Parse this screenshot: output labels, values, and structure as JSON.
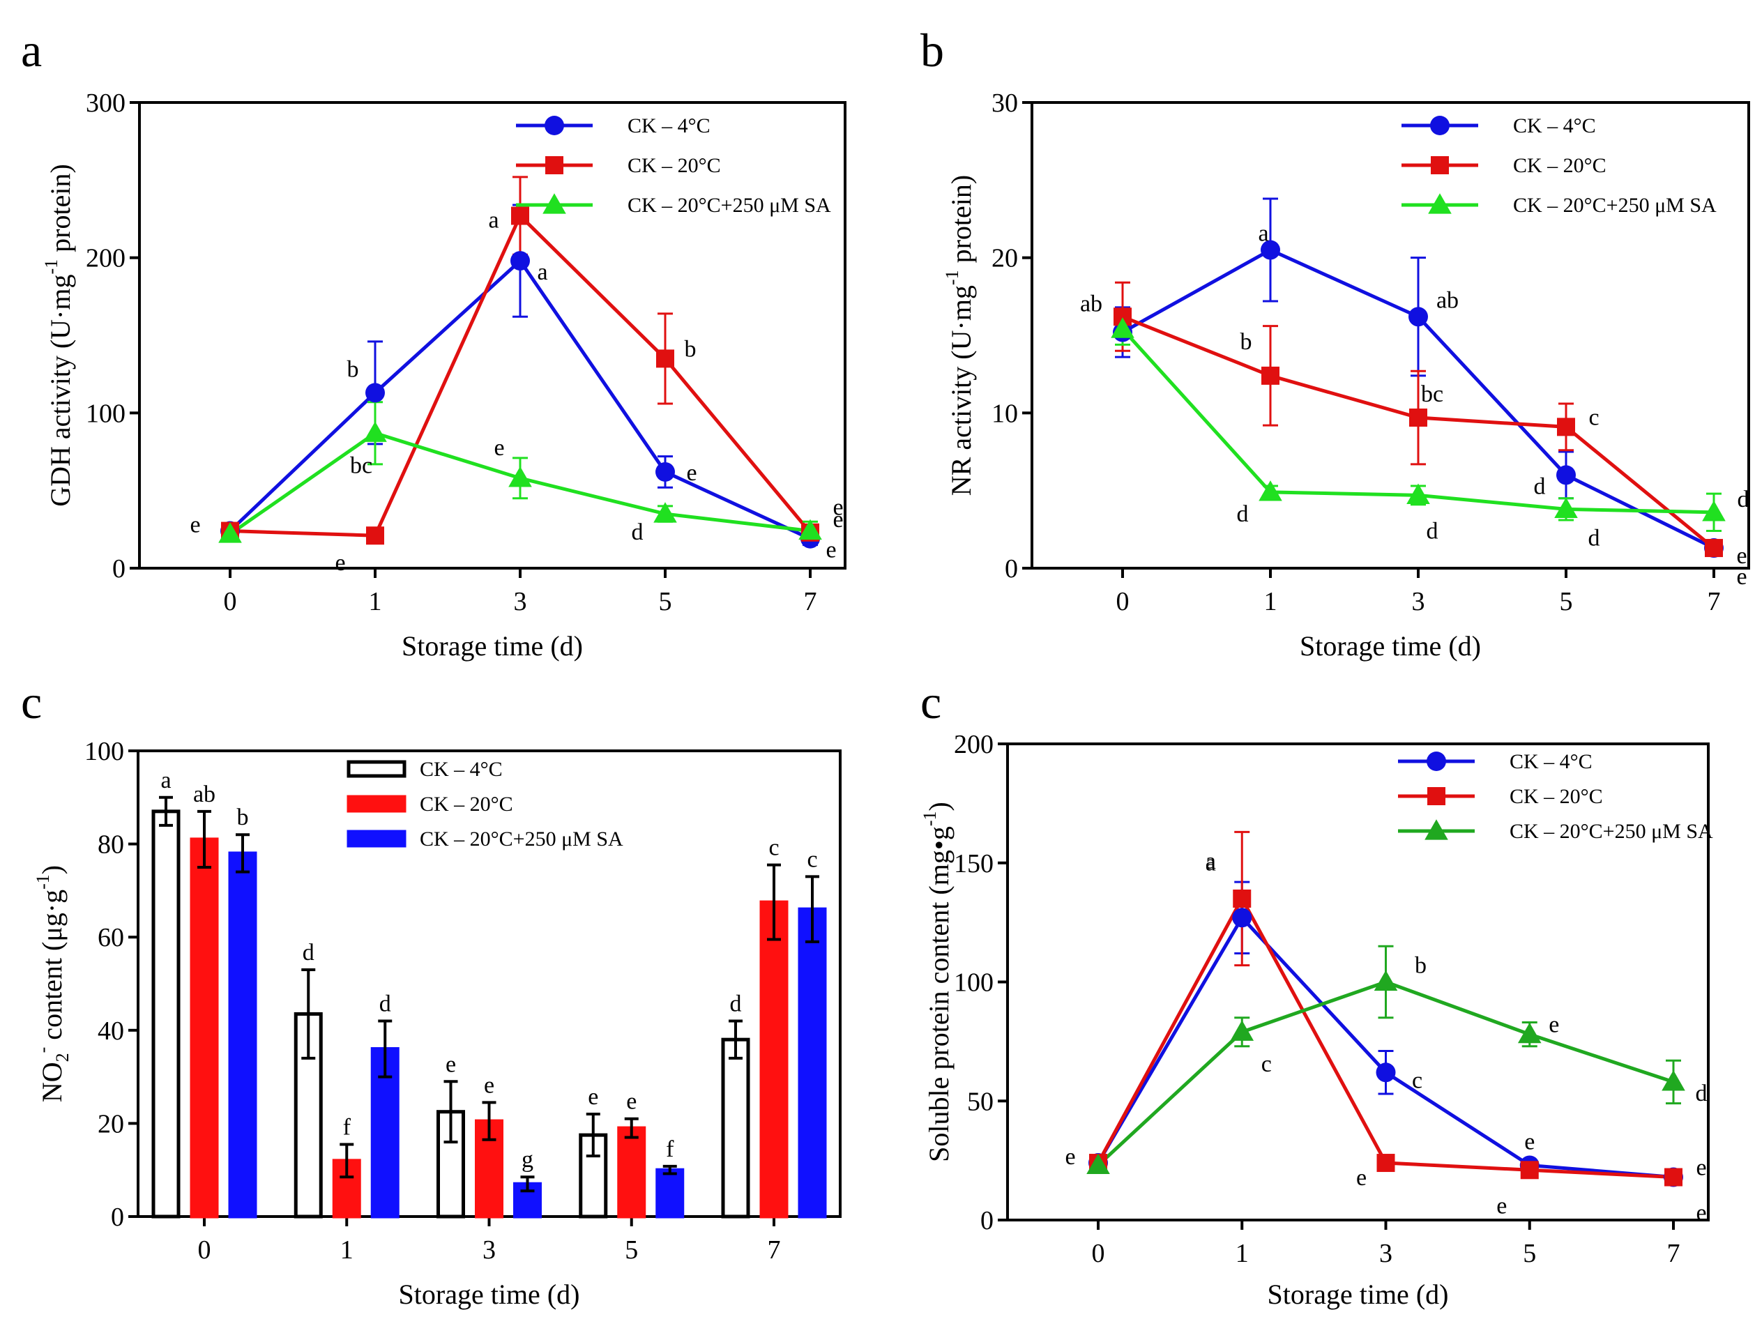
{
  "chart_data": [
    {
      "panel": "a",
      "type": "line",
      "categories": [
        "0",
        "1",
        "3",
        "5",
        "7"
      ],
      "xlabel": "Storage time (d)",
      "ylabel": "GDH activity (U·mg-1 protein)",
      "ylabel_parts": {
        "pre": "GDH activity (U·mg",
        "sup": "-1",
        "post": " protein)"
      },
      "ylim": [
        0,
        300
      ],
      "yticks": [
        "0",
        "100",
        "200",
        "300"
      ],
      "legend_position": "top-right",
      "series": [
        {
          "name": "CK – 4°C",
          "color": "#1010e0",
          "marker": "circle",
          "values": [
            24,
            113,
            198,
            62,
            19
          ],
          "errors": [
            4,
            33,
            36,
            10,
            4
          ],
          "labels": [
            "e",
            "b",
            "a",
            "e",
            "e"
          ]
        },
        {
          "name": "CK – 20°C",
          "color": "#e01010",
          "marker": "square",
          "values": [
            24,
            21,
            227,
            135,
            23
          ],
          "errors": [
            3,
            3,
            25,
            29,
            5
          ],
          "labels": [
            "",
            "e",
            "a",
            "b",
            "e"
          ]
        },
        {
          "name": "CK – 20°C+250 μM SA",
          "color": "#20e020",
          "marker": "triangle",
          "values": [
            22,
            87,
            58,
            35,
            24
          ],
          "errors": [
            3,
            20,
            13,
            5,
            6
          ],
          "labels": [
            "",
            "bc",
            "e",
            "d",
            "e"
          ]
        }
      ]
    },
    {
      "panel": "b",
      "type": "line",
      "categories": [
        "0",
        "1",
        "3",
        "5",
        "7"
      ],
      "xlabel": "Storage time (d)",
      "ylabel": "NR activity (U·mg-1 protein)",
      "ylabel_parts": {
        "pre": "NR activity (U·mg",
        "sup": "-1",
        "post": " protein)"
      },
      "ylim": [
        0,
        30
      ],
      "yticks": [
        "0",
        "10",
        "20",
        "30"
      ],
      "legend_position": "top-right",
      "series": [
        {
          "name": "CK – 4°C",
          "color": "#1010e0",
          "marker": "circle",
          "values": [
            15.2,
            20.5,
            16.2,
            6.0,
            1.3
          ],
          "errors": [
            1.6,
            3.3,
            3.8,
            1.5,
            0.3
          ],
          "labels": [
            "",
            "a",
            "ab",
            "d",
            "e"
          ]
        },
        {
          "name": "CK – 20°C",
          "color": "#e01010",
          "marker": "square",
          "values": [
            16.2,
            12.4,
            9.7,
            9.1,
            1.3
          ],
          "errors": [
            2.2,
            3.2,
            3.0,
            1.5,
            0.3
          ],
          "labels": [
            "ab",
            "b",
            "bc",
            "c",
            "e"
          ]
        },
        {
          "name": "CK – 20°C+250 μM SA",
          "color": "#20e020",
          "marker": "triangle",
          "values": [
            15.4,
            4.9,
            4.7,
            3.8,
            3.6
          ],
          "errors": [
            1.0,
            0.4,
            0.6,
            0.7,
            1.2
          ],
          "labels": [
            "",
            "d",
            "d",
            "d",
            "d"
          ]
        }
      ]
    },
    {
      "panel": "c",
      "type": "bar",
      "categories": [
        "0",
        "1",
        "3",
        "5",
        "7"
      ],
      "xlabel": "Storage time (d)",
      "ylabel": "NO2- content (μg·g-1)",
      "ylabel_parts": {
        "pre": "NO",
        "sub": "2",
        "sup": "-",
        "mid": " content (μg·g",
        "sup2": "-1",
        "post": ")"
      },
      "ylim": [
        0,
        100
      ],
      "yticks": [
        "0",
        "20",
        "40",
        "60",
        "80",
        "100"
      ],
      "legend_position": "top-center",
      "series": [
        {
          "name": "CK – 4°C",
          "color": "#ffffff",
          "edge": "#000000",
          "values": [
            87,
            43.5,
            22.5,
            17.5,
            38
          ],
          "errors": [
            3,
            9.5,
            6.5,
            4.5,
            4
          ],
          "labels": [
            "a",
            "d",
            "e",
            "e",
            "d"
          ]
        },
        {
          "name": "CK – 20°C",
          "color": "#ff1010",
          "edge": "#ff1010",
          "values": [
            81,
            12,
            20.5,
            19,
            67.5
          ],
          "errors": [
            6,
            3.5,
            4,
            2,
            8
          ],
          "labels": [
            "ab",
            "f",
            "e",
            "e",
            "c"
          ]
        },
        {
          "name": "CK – 20°C+250 μM SA",
          "color": "#1010ff",
          "edge": "#1010ff",
          "values": [
            78,
            36,
            7,
            10,
            66
          ],
          "errors": [
            4,
            6,
            1.5,
            0.8,
            7
          ],
          "labels": [
            "b",
            "d",
            "g",
            "f",
            "c"
          ]
        }
      ]
    },
    {
      "panel": "c",
      "type": "line",
      "categories": [
        "0",
        "1",
        "3",
        "5",
        "7"
      ],
      "xlabel": "Storage time (d)",
      "ylabel": "Soluble protein content (mg•g-1)",
      "ylabel_parts": {
        "pre": "Soluble protein content (mg•g",
        "sup": "-1",
        "post": ")"
      },
      "ylim": [
        0,
        200
      ],
      "yticks": [
        "0",
        "50",
        "100",
        "150",
        "200"
      ],
      "legend_position": "top-right",
      "series": [
        {
          "name": "CK – 4°C",
          "color": "#1010e0",
          "marker": "circle",
          "values": [
            24,
            127,
            62,
            23,
            18
          ],
          "errors": [
            2,
            15,
            9,
            2,
            2
          ],
          "labels": [
            "",
            "a",
            "c",
            "e",
            "e"
          ]
        },
        {
          "name": "CK – 20°C",
          "color": "#e01010",
          "marker": "square",
          "values": [
            24,
            135,
            24,
            21,
            18
          ],
          "errors": [
            2,
            28,
            2,
            2,
            2
          ],
          "labels": [
            "e",
            "a",
            "e",
            "e",
            "e"
          ]
        },
        {
          "name": "CK – 20°C+250 μM SA",
          "color": "#20a820",
          "marker": "triangle",
          "values": [
            23,
            79,
            100,
            78,
            58
          ],
          "errors": [
            2,
            6,
            15,
            5,
            9
          ],
          "labels": [
            "",
            "c",
            "b",
            "e",
            "d"
          ]
        }
      ]
    }
  ]
}
